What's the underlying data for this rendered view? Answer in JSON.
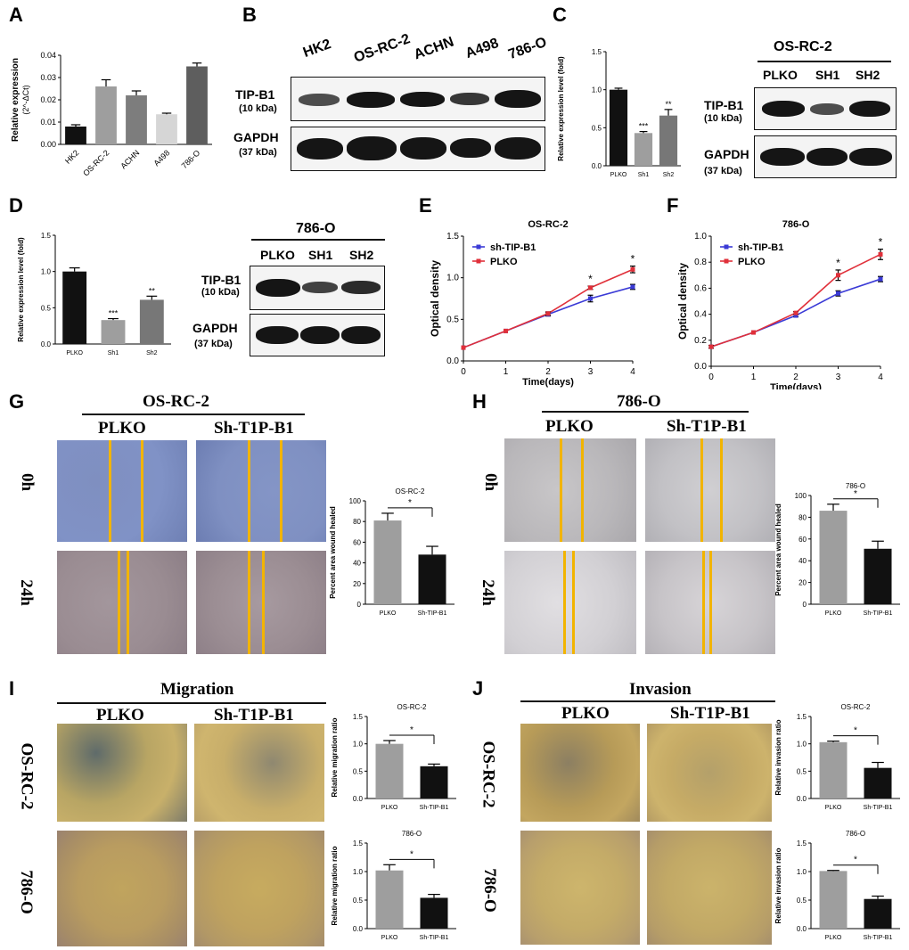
{
  "panels": {
    "A": {
      "letter": "A",
      "chart_data": {
        "type": "bar",
        "categories": [
          "HK2",
          "OS-RC-2",
          "ACHN",
          "A498",
          "786-O"
        ],
        "values": [
          0.008,
          0.026,
          0.022,
          0.0135,
          0.035
        ],
        "errors": [
          0.0008,
          0.003,
          0.002,
          0.0005,
          0.0015
        ],
        "colors": [
          "#111111",
          "#9e9e9e",
          "#7d7d7d",
          "#d6d6d6",
          "#5e5e5e"
        ],
        "ylabel": "Relative expression",
        "ylabel2": "(2^-ΔCt)",
        "ylim": [
          0,
          0.04
        ],
        "yticks": [
          "0.00",
          "0.01",
          "0.02",
          "0.03",
          "0.04"
        ]
      }
    },
    "B": {
      "letter": "B",
      "lanes": [
        "HK2",
        "OS-RC-2",
        "ACHN",
        "A498",
        "786-O"
      ],
      "target": "TIP-B1",
      "target_kda": "(10 kDa)",
      "control": "GAPDH",
      "control_kda": "(37 kDa)"
    },
    "C": {
      "letter": "C",
      "title": "OS-RC-2",
      "chart_data": {
        "type": "bar",
        "categories": [
          "PLKO",
          "Sh1",
          "Sh2"
        ],
        "values": [
          1.0,
          0.43,
          0.66
        ],
        "errors": [
          0.02,
          0.02,
          0.08
        ],
        "significance": [
          "",
          "***",
          "**"
        ],
        "colors": [
          "#111111",
          "#9e9e9e",
          "#777777"
        ],
        "ylabel": "Relative expression level (fold)",
        "ylim": [
          0,
          1.5
        ],
        "yticks": [
          "0.0",
          "0.5",
          "1.0",
          "1.5"
        ]
      },
      "blot": {
        "cell_line": "OS-RC-2",
        "lanes": [
          "PLKO",
          "SH1",
          "SH2"
        ],
        "target": "TIP-B1",
        "target_kda": "(10 kDa)",
        "control": "GAPDH",
        "control_kda": "(37 kDa)"
      }
    },
    "D": {
      "letter": "D",
      "title": "786-O",
      "chart_data": {
        "type": "bar",
        "categories": [
          "PLKO",
          "Sh1",
          "Sh2"
        ],
        "values": [
          1.0,
          0.33,
          0.61
        ],
        "errors": [
          0.05,
          0.02,
          0.05
        ],
        "significance": [
          "",
          "***",
          "**"
        ],
        "colors": [
          "#111111",
          "#9e9e9e",
          "#777777"
        ],
        "ylabel": "Relative expression level (fold)",
        "ylim": [
          0,
          1.5
        ],
        "yticks": [
          "0.0",
          "0.5",
          "1.0",
          "1.5"
        ]
      },
      "blot": {
        "cell_line": "786-O",
        "lanes": [
          "PLKO",
          "SH1",
          "SH2"
        ],
        "target": "TIP-B1",
        "target_kda": "(10 kDa)",
        "control": "GAPDH",
        "control_kda": "(37 kDa)"
      }
    },
    "E": {
      "letter": "E",
      "chart_data": {
        "type": "line",
        "title": "OS-RC-2",
        "xlabel": "Time(days)",
        "ylabel": "Optical density",
        "x": [
          0,
          1,
          2,
          3,
          4
        ],
        "xlim": [
          0,
          4
        ],
        "ylim": [
          0,
          1.5
        ],
        "yticks": [
          "0.0",
          "0.5",
          "1.0",
          "1.5"
        ],
        "significance": [
          "",
          "",
          "",
          "*",
          "*"
        ],
        "series": [
          {
            "name": "sh-TIP-B1",
            "color": "#3b3bd6",
            "values": [
              0.16,
              0.36,
              0.56,
              0.75,
              0.89
            ],
            "errors": [
              0,
              0,
              0.02,
              0.04,
              0.03
            ]
          },
          {
            "name": "PLKO",
            "color": "#e0303a",
            "values": [
              0.16,
              0.36,
              0.57,
              0.88,
              1.1
            ],
            "errors": [
              0,
              0,
              0.02,
              0.02,
              0.04
            ]
          }
        ]
      }
    },
    "F": {
      "letter": "F",
      "chart_data": {
        "type": "line",
        "title": "786-O",
        "xlabel": "Time(days)",
        "ylabel": "Optical density",
        "x": [
          0,
          1,
          2,
          3,
          4
        ],
        "xlim": [
          0,
          4
        ],
        "ylim": [
          0,
          1.0
        ],
        "yticks": [
          "0.0",
          "0.2",
          "0.4",
          "0.6",
          "0.8",
          "1.0"
        ],
        "significance": [
          "",
          "",
          "",
          "*",
          "*"
        ],
        "series": [
          {
            "name": "sh-TIP-B1",
            "color": "#3b3bd6",
            "values": [
              0.15,
              0.26,
              0.39,
              0.56,
              0.67
            ],
            "errors": [
              0.01,
              0,
              0.01,
              0.02,
              0.02
            ]
          },
          {
            "name": "PLKO",
            "color": "#e0303a",
            "values": [
              0.15,
              0.26,
              0.41,
              0.7,
              0.86
            ],
            "errors": [
              0.01,
              0,
              0.01,
              0.04,
              0.04
            ]
          }
        ]
      }
    },
    "G": {
      "letter": "G",
      "cell_line": "OS-RC-2",
      "columns": [
        "PLKO",
        "Sh-T1P-B1"
      ],
      "rows": [
        "0h",
        "24h"
      ],
      "chart_data": {
        "type": "bar",
        "title": "OS-RC-2",
        "categories": [
          "PLKO",
          "Sh-TIP-B1"
        ],
        "values": [
          81,
          48
        ],
        "errors": [
          7,
          8
        ],
        "significance": "*",
        "colors": [
          "#9e9e9e",
          "#111111"
        ],
        "ylabel": "Percent area wound healed",
        "ylim": [
          0,
          100
        ],
        "yticks": [
          "0",
          "20",
          "40",
          "60",
          "80",
          "100"
        ]
      }
    },
    "H": {
      "letter": "H",
      "cell_line": "786-O",
      "columns": [
        "PLKO",
        "Sh-T1P-B1"
      ],
      "rows": [
        "0h",
        "24h"
      ],
      "chart_data": {
        "type": "bar",
        "title": "786-O",
        "categories": [
          "PLKO",
          "Sh-TIP-B1"
        ],
        "values": [
          86,
          51
        ],
        "errors": [
          6,
          7
        ],
        "significance": "*",
        "colors": [
          "#9e9e9e",
          "#111111"
        ],
        "ylabel": "Percent area wound healed",
        "ylim": [
          0,
          100
        ],
        "yticks": [
          "0",
          "20",
          "40",
          "60",
          "80",
          "100"
        ]
      }
    },
    "I": {
      "letter": "I",
      "heading": "Migration",
      "columns": [
        "PLKO",
        "Sh-T1P-B1"
      ],
      "rows": [
        "OS-RC-2",
        "786-O"
      ],
      "chart_data": [
        {
          "type": "bar",
          "title": "OS-RC-2",
          "categories": [
            "PLKO",
            "Sh-TIP-B1"
          ],
          "values": [
            1.0,
            0.59
          ],
          "errors": [
            0.06,
            0.04
          ],
          "significance": "*",
          "colors": [
            "#9e9e9e",
            "#111111"
          ],
          "ylabel": "Relative migration ratio",
          "ylim": [
            0,
            1.5
          ],
          "yticks": [
            "0.0",
            "0.5",
            "1.0",
            "1.5"
          ]
        },
        {
          "type": "bar",
          "title": "786-O",
          "categories": [
            "PLKO",
            "Sh-TIP-B1"
          ],
          "values": [
            1.02,
            0.54
          ],
          "errors": [
            0.1,
            0.06
          ],
          "significance": "*",
          "colors": [
            "#9e9e9e",
            "#111111"
          ],
          "ylabel": "Relative migration ratio",
          "ylim": [
            0,
            1.5
          ],
          "yticks": [
            "0.0",
            "0.5",
            "1.0",
            "1.5"
          ]
        }
      ]
    },
    "J": {
      "letter": "J",
      "heading": "Invasion",
      "columns": [
        "PLKO",
        "Sh-T1P-B1"
      ],
      "rows": [
        "OS-RC-2",
        "786-O"
      ],
      "chart_data": [
        {
          "type": "bar",
          "title": "OS-RC-2",
          "categories": [
            "PLKO",
            "Sh-TIP-B1"
          ],
          "values": [
            1.03,
            0.56
          ],
          "errors": [
            0.02,
            0.1
          ],
          "significance": "*",
          "colors": [
            "#9e9e9e",
            "#111111"
          ],
          "ylabel": "Relative invasion ratio",
          "ylim": [
            0,
            1.5
          ],
          "yticks": [
            "0.0",
            "0.5",
            "1.0",
            "1.5"
          ]
        },
        {
          "type": "bar",
          "title": "786-O",
          "categories": [
            "PLKO",
            "Sh-TIP-B1"
          ],
          "values": [
            1.01,
            0.52
          ],
          "errors": [
            0.01,
            0.05
          ],
          "significance": "*",
          "colors": [
            "#9e9e9e",
            "#111111"
          ],
          "ylabel": "Relative invasion ratio",
          "ylim": [
            0,
            1.5
          ],
          "yticks": [
            "0.0",
            "0.5",
            "1.0",
            "1.5"
          ]
        }
      ]
    }
  }
}
